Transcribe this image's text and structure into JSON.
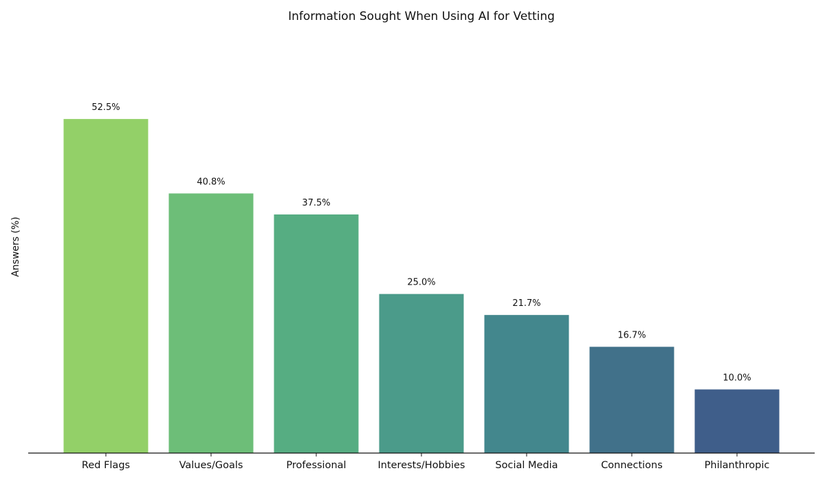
{
  "chart_data": {
    "type": "bar",
    "title": "Information Sought When Using AI for Vetting",
    "xlabel": "",
    "ylabel": "Answers (%)",
    "categories": [
      "Red Flags",
      "Values/Goals",
      "Professional",
      "Interests/Hobbies",
      "Social Media",
      "Connections",
      "Philanthropic"
    ],
    "values": [
      52.5,
      40.8,
      37.5,
      25.0,
      21.7,
      16.7,
      10.0
    ],
    "data_labels": [
      "52.5%",
      "40.8%",
      "37.5%",
      "25.0%",
      "21.7%",
      "16.7%",
      "10.0%"
    ],
    "colors": [
      "#93d068",
      "#6dbe78",
      "#56ad82",
      "#4b9b8a",
      "#43878d",
      "#41718a",
      "#3f5e8a"
    ],
    "ylim": [
      0,
      57.75
    ],
    "grid": false,
    "legend": "none"
  }
}
